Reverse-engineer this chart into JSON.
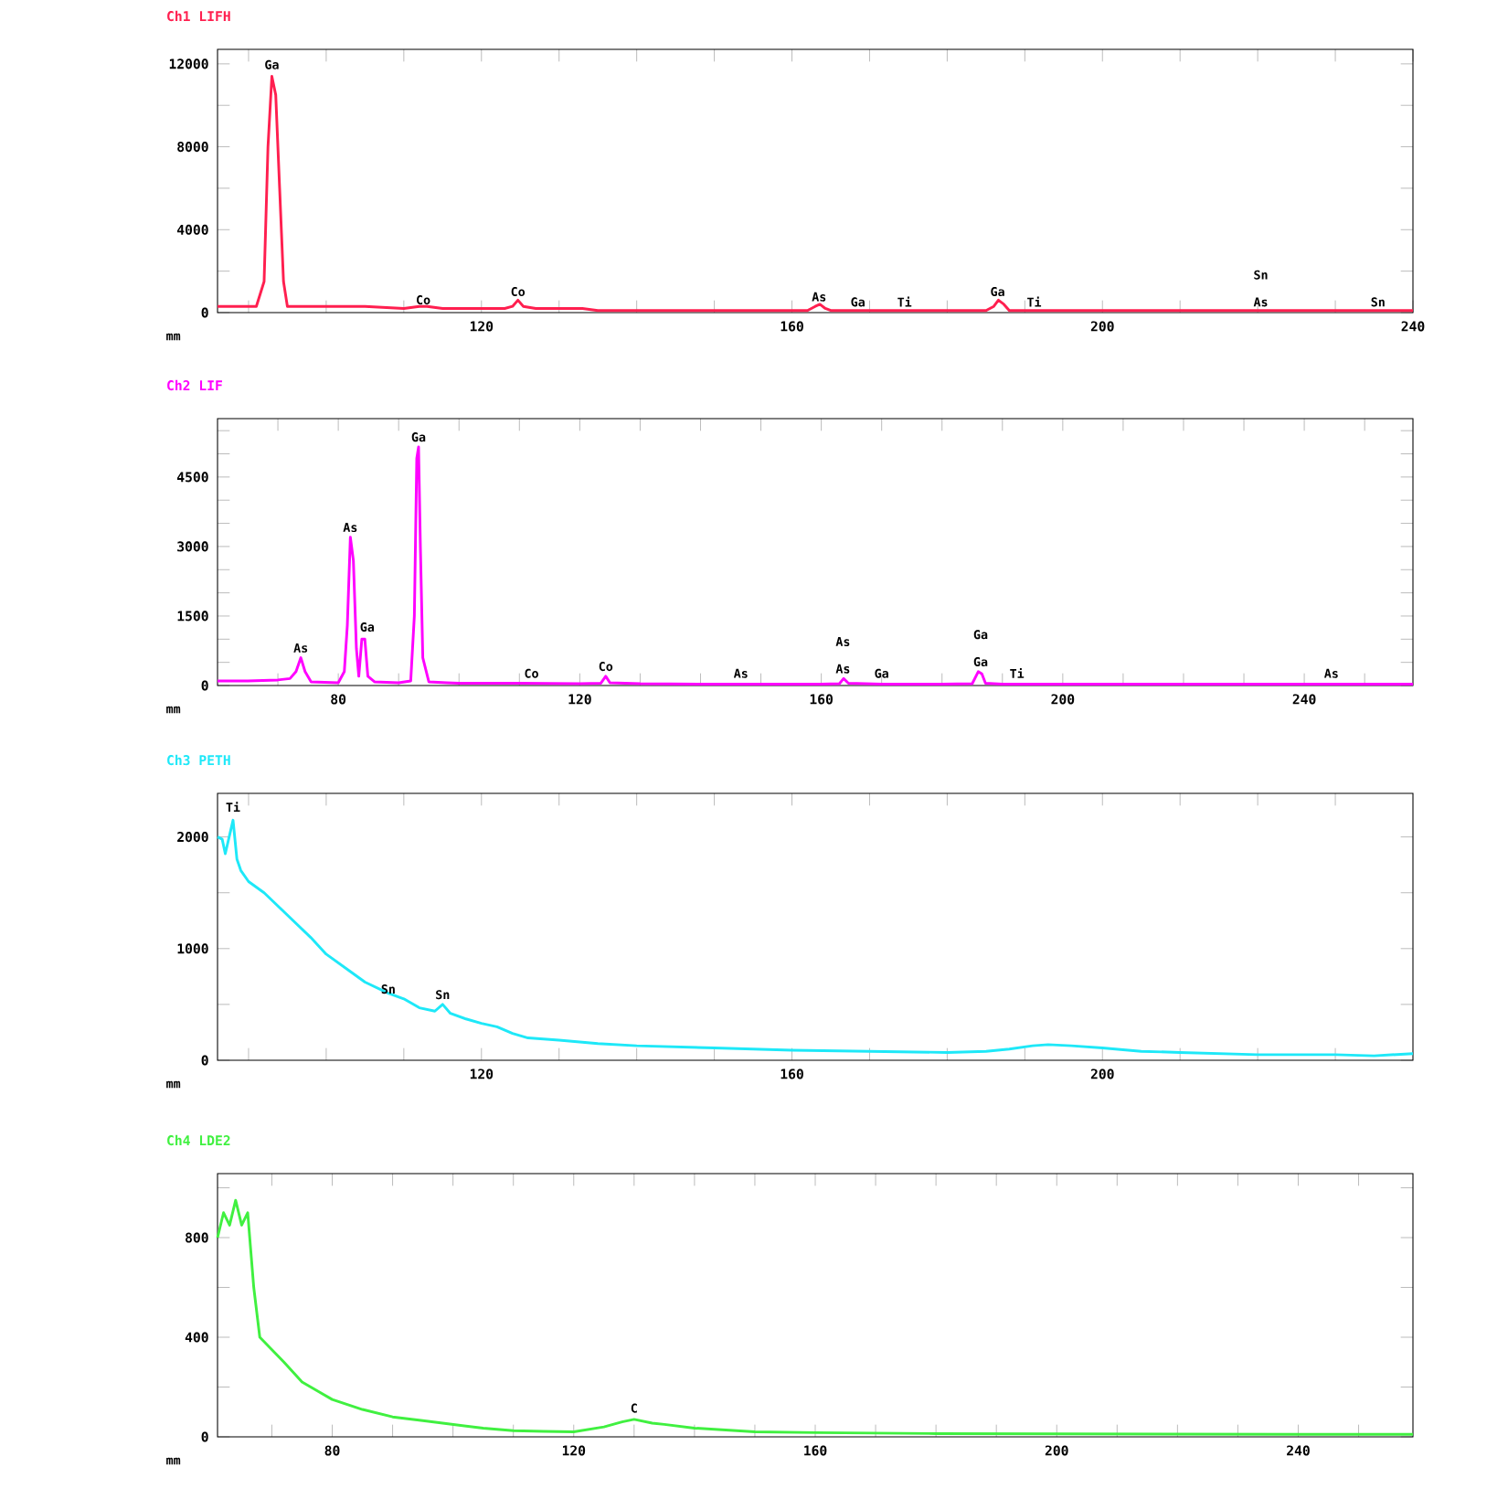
{
  "chart_data": [
    {
      "type": "line",
      "title": "Ch1 LIFH",
      "xlabel": "mm",
      "color": "#ff1f4f",
      "xlim": [
        86,
        240
      ],
      "ylim": [
        0,
        12700
      ],
      "xticks": [
        {
          "value": 90,
          "label": null
        },
        {
          "value": 100,
          "label": null
        },
        {
          "value": 110,
          "label": null
        },
        120,
        {
          "value": 130,
          "label": null
        },
        {
          "value": 140,
          "label": null
        },
        {
          "value": 150,
          "label": null
        },
        160,
        {
          "value": 170,
          "label": null
        },
        {
          "value": 180,
          "label": null
        },
        {
          "value": 190,
          "label": null
        },
        200,
        {
          "value": 210,
          "label": null
        },
        {
          "value": 220,
          "label": null
        },
        {
          "value": 230,
          "label": null
        },
        240
      ],
      "yticks": [
        0,
        {
          "value": 2000,
          "label": null
        },
        4000,
        {
          "value": 6000,
          "label": null
        },
        8000,
        {
          "value": 10000,
          "label": null
        },
        12000
      ],
      "x": [
        86,
        90,
        91,
        92,
        92.5,
        93,
        93.5,
        94,
        94.5,
        95,
        97,
        100,
        105,
        110,
        112,
        113,
        115,
        120,
        123,
        124,
        124.7,
        125.4,
        127,
        130,
        133,
        135,
        140,
        150,
        160,
        162,
        163,
        163.6,
        164.3,
        165,
        170,
        180,
        185,
        186,
        186.6,
        187.3,
        188,
        190,
        200,
        210,
        220,
        230,
        240
      ],
      "values": [
        300,
        300,
        300,
        1500,
        8000,
        11400,
        10500,
        6000,
        1500,
        300,
        300,
        300,
        300,
        200,
        300,
        300,
        200,
        200,
        200,
        300,
        600,
        300,
        200,
        200,
        200,
        100,
        100,
        100,
        100,
        100,
        300,
        400,
        200,
        100,
        100,
        100,
        100,
        300,
        600,
        400,
        100,
        100,
        100,
        100,
        100,
        100,
        100
      ],
      "annotations": [
        {
          "text": "Ga",
          "x": 93,
          "y": 11600
        },
        {
          "text": "Co",
          "x": 112.5,
          "y": 250
        },
        {
          "text": "Co",
          "x": 124.7,
          "y": 650
        },
        {
          "text": "As",
          "x": 163.5,
          "y": 400
        },
        {
          "text": "Ga",
          "x": 168.5,
          "y": 150
        },
        {
          "text": "Ti",
          "x": 174.5,
          "y": 150
        },
        {
          "text": "Ga",
          "x": 186.5,
          "y": 650
        },
        {
          "text": "Ti",
          "x": 191.2,
          "y": 150
        },
        {
          "text": "As",
          "x": 220.4,
          "y": 150
        },
        "Sn",
        {
          "text": "Sn",
          "x": 235.5,
          "y": 150
        }
      ]
    },
    {
      "type": "line",
      "title": "Ch2 LIF",
      "xlabel": "mm",
      "color": "#ff00ff",
      "xlim": [
        60,
        258
      ],
      "ylim": [
        0,
        5760
      ],
      "xticks": [
        {
          "value": 70,
          "label": null
        },
        80,
        {
          "value": 90,
          "label": null
        },
        {
          "value": 100,
          "label": null
        },
        {
          "value": 110,
          "label": null
        },
        120,
        {
          "value": 130,
          "label": null
        },
        {
          "value": 140,
          "label": null
        },
        {
          "value": 150,
          "label": null
        },
        160,
        {
          "value": 170,
          "label": null
        },
        {
          "value": 180,
          "label": null
        },
        {
          "value": 190,
          "label": null
        },
        200,
        {
          "value": 210,
          "label": null
        },
        {
          "value": 220,
          "label": null
        },
        {
          "value": 230,
          "label": null
        },
        240,
        {
          "value": 250,
          "label": null
        }
      ],
      "yticks": [
        0,
        {
          "value": 500,
          "label": null
        },
        {
          "value": 1000,
          "label": null
        },
        1500,
        {
          "value": 2000,
          "label": null
        },
        {
          "value": 2500,
          "label": null
        },
        3000,
        {
          "value": 3500,
          "label": null
        },
        {
          "value": 4000,
          "label": null
        },
        4500,
        {
          "value": 5000,
          "label": null
        },
        {
          "value": 5500,
          "label": null
        }
      ],
      "x": [
        60,
        65,
        70,
        72,
        73,
        73.8,
        74.5,
        75.5,
        80,
        81,
        81.5,
        82,
        82.5,
        83,
        83.4,
        83.9,
        84.4,
        84.9,
        86,
        90,
        92,
        92.6,
        93,
        93.3,
        93.6,
        94,
        95,
        98,
        100,
        110,
        120,
        123.5,
        124.3,
        125,
        130,
        140,
        150,
        160,
        163,
        163.7,
        164.5,
        170,
        180,
        185,
        186,
        186.6,
        187.2,
        190,
        200,
        220,
        240,
        258
      ],
      "values": [
        100,
        100,
        120,
        150,
        300,
        600,
        300,
        80,
        60,
        300,
        1300,
        3200,
        2700,
        800,
        200,
        1000,
        1000,
        200,
        80,
        60,
        100,
        1500,
        4900,
        5150,
        3000,
        600,
        80,
        60,
        50,
        50,
        40,
        50,
        200,
        60,
        40,
        30,
        30,
        30,
        40,
        150,
        50,
        30,
        30,
        40,
        300,
        250,
        50,
        30,
        30,
        30,
        30,
        30
      ],
      "annotations": [
        {
          "text": "As",
          "x": 73.8,
          "y": 650
        },
        {
          "text": "As",
          "x": 82,
          "y": 3250
        },
        {
          "text": "Ga",
          "x": 84.8,
          "y": 1100
        },
        {
          "text": "Ga",
          "x": 93.3,
          "y": 5200
        },
        {
          "text": "Co",
          "x": 112,
          "y": 100
        },
        {
          "text": "Co",
          "x": 124.3,
          "y": 250
        },
        {
          "text": "As",
          "x": 146.7,
          "y": 100
        },
        {
          "text": "As",
          "x": 163.6,
          "y": 200
        },
        "As",
        {
          "text": "Ga",
          "x": 170,
          "y": 100
        },
        {
          "text": "Ga",
          "x": 186.4,
          "y": 350
        },
        "Ga",
        {
          "text": "Ti",
          "x": 192.4,
          "y": 100
        },
        {
          "text": "As",
          "x": 244.5,
          "y": 100
        }
      ]
    },
    {
      "type": "line",
      "title": "Ch3 PETH",
      "xlabel": "mm",
      "color": "#1ee8f8",
      "xlim": [
        86,
        240
      ],
      "ylim": [
        0,
        2390
      ],
      "xticks": [
        {
          "value": 90,
          "label": null
        },
        {
          "value": 100,
          "label": null
        },
        {
          "value": 110,
          "label": null
        },
        120,
        {
          "value": 130,
          "label": null
        },
        {
          "value": 140,
          "label": null
        },
        {
          "value": 150,
          "label": null
        },
        160,
        {
          "value": 170,
          "label": null
        },
        {
          "value": 180,
          "label": null
        },
        {
          "value": 190,
          "label": null
        },
        200,
        {
          "value": 210,
          "label": null
        },
        {
          "value": 220,
          "label": null
        },
        {
          "value": 230,
          "label": null
        }
      ],
      "yticks": [
        0,
        {
          "value": 500,
          "label": null
        },
        1000,
        {
          "value": 1500,
          "label": null
        },
        2000
      ],
      "x": [
        86,
        86.6,
        87,
        87.5,
        88,
        88.5,
        89,
        90,
        92,
        95,
        98,
        100,
        103,
        105,
        108,
        110,
        112,
        114,
        115,
        116,
        118,
        120,
        122,
        124,
        126,
        130,
        135,
        140,
        150,
        160,
        170,
        180,
        185,
        188,
        191,
        193,
        196,
        200,
        205,
        210,
        220,
        230,
        235,
        240
      ],
      "values": [
        2000,
        1980,
        1850,
        2000,
        2150,
        1800,
        1700,
        1600,
        1500,
        1300,
        1100,
        950,
        800,
        700,
        600,
        550,
        470,
        440,
        500,
        420,
        370,
        330,
        300,
        240,
        200,
        180,
        150,
        130,
        110,
        90,
        80,
        70,
        80,
        100,
        130,
        140,
        130,
        110,
        80,
        70,
        50,
        50,
        40,
        60
      ],
      "annotations": [
        {
          "text": "Ti",
          "x": 88,
          "y": 2200
        },
        {
          "text": "Sn",
          "x": 108,
          "y": 570
        },
        {
          "text": "Sn",
          "x": 115,
          "y": 520
        }
      ]
    },
    {
      "type": "line",
      "title": "Ch4 LDE2",
      "xlabel": "mm",
      "color": "#40f040",
      "xlim": [
        61,
        259
      ],
      "ylim": [
        0,
        1057
      ],
      "xticks": [
        {
          "value": 70,
          "label": null
        },
        80,
        {
          "value": 90,
          "label": null
        },
        {
          "value": 100,
          "label": null
        },
        {
          "value": 110,
          "label": null
        },
        120,
        {
          "value": 130,
          "label": null
        },
        {
          "value": 140,
          "label": null
        },
        {
          "value": 150,
          "label": null
        },
        160,
        {
          "value": 170,
          "label": null
        },
        {
          "value": 180,
          "label": null
        },
        {
          "value": 190,
          "label": null
        },
        200,
        {
          "value": 210,
          "label": null
        },
        {
          "value": 220,
          "label": null
        },
        {
          "value": 230,
          "label": null
        },
        240,
        {
          "value": 250,
          "label": null
        }
      ],
      "yticks": [
        0,
        {
          "value": 200,
          "label": null
        },
        400,
        {
          "value": 600,
          "label": null
        },
        800,
        {
          "value": 1000,
          "label": null
        }
      ],
      "x": [
        61,
        62,
        63,
        64,
        65,
        66,
        67,
        68,
        70,
        72,
        75,
        80,
        85,
        90,
        95,
        100,
        105,
        110,
        115,
        120,
        125,
        128,
        130,
        133,
        135,
        140,
        150,
        160,
        170,
        180,
        200,
        220,
        240,
        259
      ],
      "values": [
        800,
        900,
        850,
        950,
        850,
        900,
        600,
        400,
        350,
        300,
        220,
        150,
        110,
        80,
        65,
        50,
        35,
        25,
        22,
        20,
        40,
        60,
        70,
        55,
        50,
        35,
        20,
        17,
        15,
        13,
        12,
        11,
        10,
        10
      ],
      "annotations": [
        {
          "text": "C",
          "x": 130,
          "y": 85
        }
      ]
    }
  ]
}
